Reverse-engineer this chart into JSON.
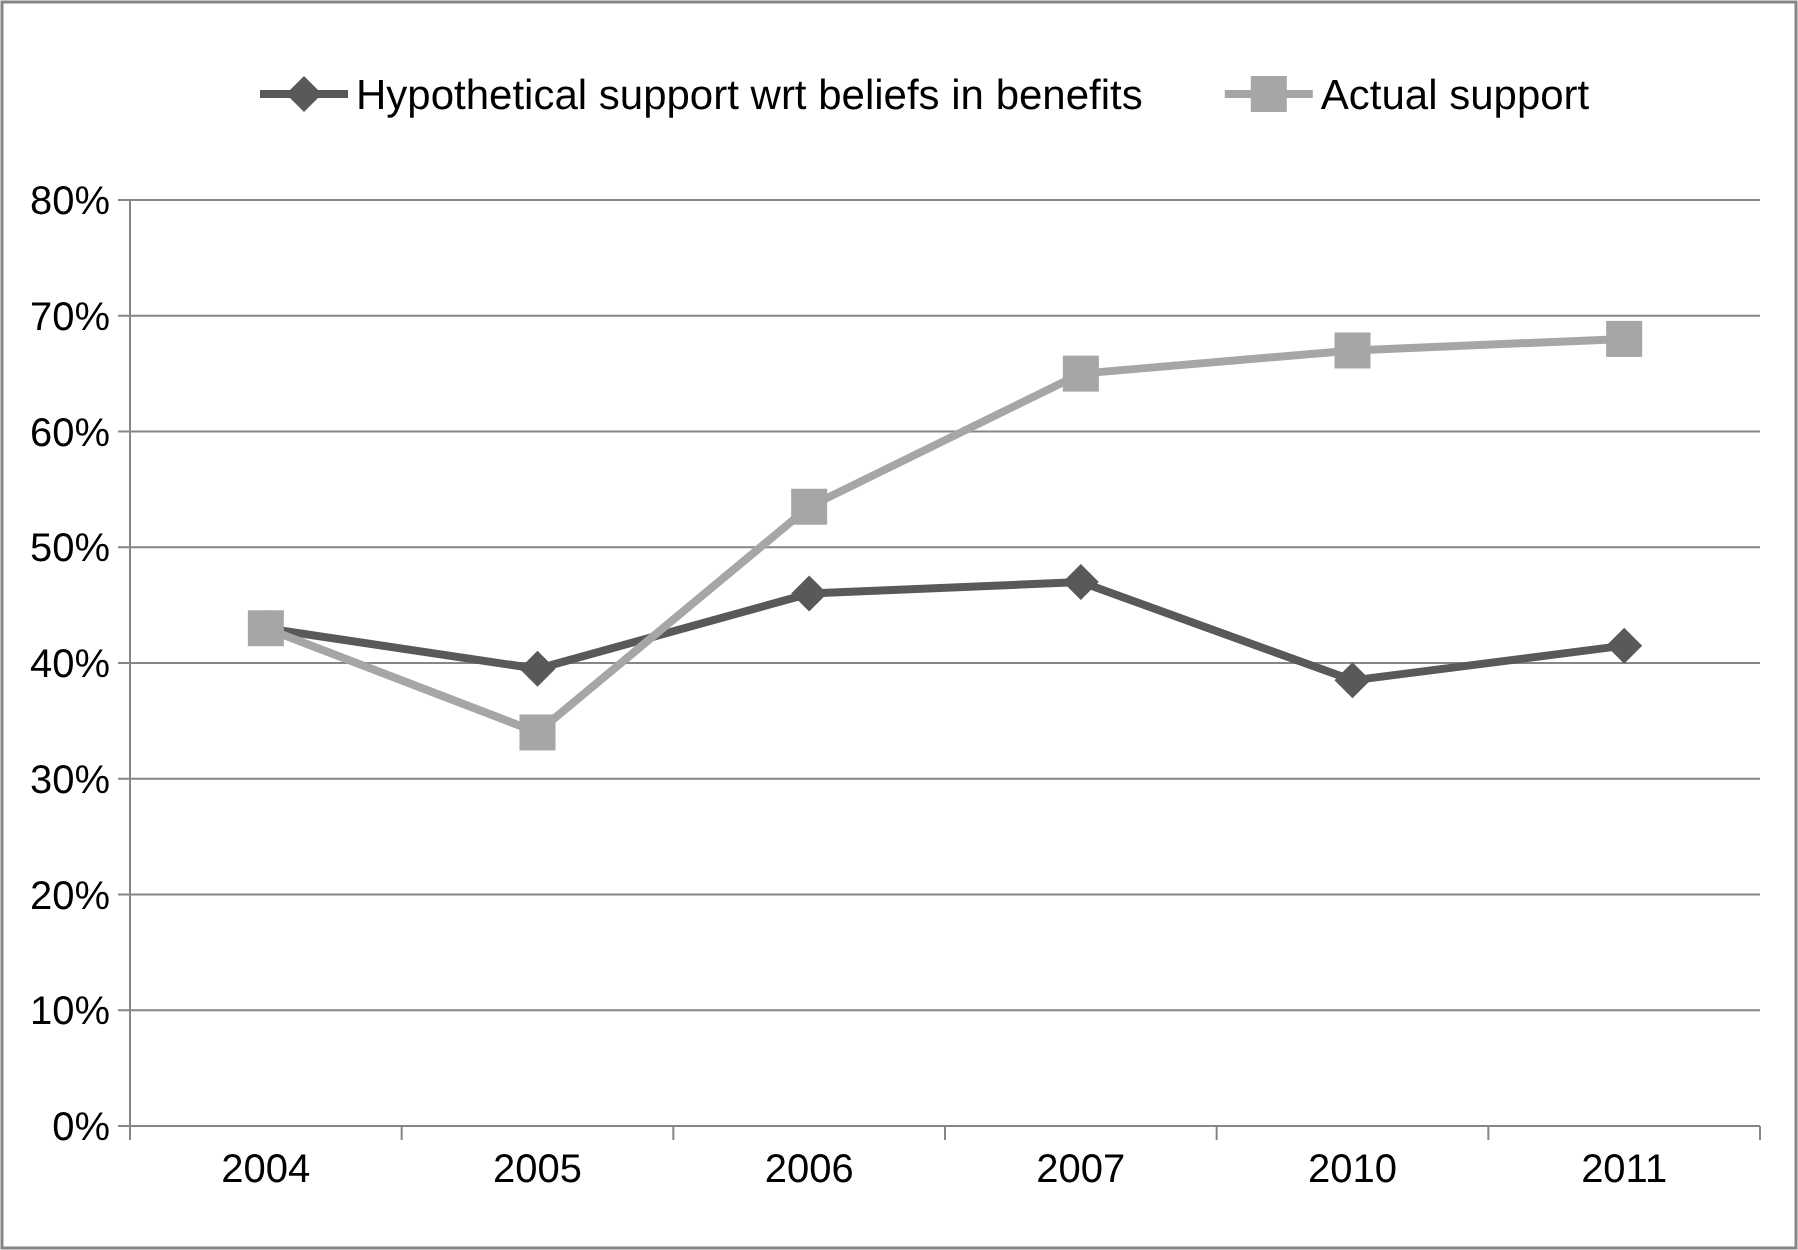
{
  "chart_data": {
    "type": "line",
    "categories": [
      "2004",
      "2005",
      "2006",
      "2007",
      "2010",
      "2011"
    ],
    "series": [
      {
        "name": "Hypothetical support wrt beliefs in benefits",
        "color": "#595959",
        "marker": "diamond",
        "values": [
          43,
          39.5,
          46,
          47,
          38.5,
          41.5
        ]
      },
      {
        "name": "Actual support",
        "color": "#a6a6a6",
        "marker": "square",
        "values": [
          43,
          34,
          53.5,
          65,
          67,
          68
        ]
      }
    ],
    "ylim": [
      0,
      80
    ],
    "yticks": [
      {
        "value": 0,
        "label": "0%"
      },
      {
        "value": 10,
        "label": "10%"
      },
      {
        "value": 20,
        "label": "20%"
      },
      {
        "value": 30,
        "label": "30%"
      },
      {
        "value": 40,
        "label": "40%"
      },
      {
        "value": 50,
        "label": "50%"
      },
      {
        "value": 60,
        "label": "60%"
      },
      {
        "value": 70,
        "label": "70%"
      },
      {
        "value": 80,
        "label": "80%"
      }
    ],
    "grid": "y",
    "legend": "top",
    "line_style": "solid"
  }
}
